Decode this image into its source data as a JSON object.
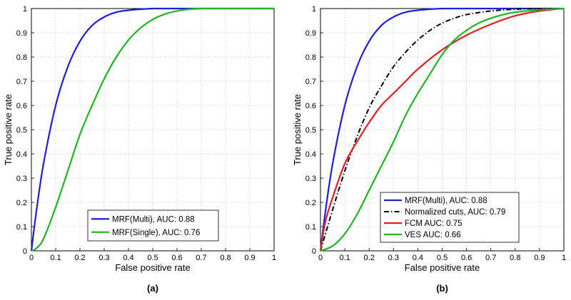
{
  "chart_data": [
    {
      "type": "line",
      "caption": "(a)",
      "xlabel": "False positive rate",
      "ylabel": "True positive rate",
      "xlim": [
        0,
        1
      ],
      "ylim": [
        0,
        1
      ],
      "grid": true,
      "xticks": [
        "0",
        "0.1",
        "0.2",
        "0.3",
        "0.4",
        "0.5",
        "0.6",
        "0.7",
        "0.8",
        "0.9",
        "1"
      ],
      "yticks": [
        "0",
        "0.1",
        "0.2",
        "0.3",
        "0.4",
        "0.5",
        "0.6",
        "0.7",
        "0.8",
        "0.9",
        "1"
      ],
      "legend_position": "bottom-center",
      "series": [
        {
          "name": "MRF(Multi), AUC: 0.88",
          "color": "#1f1fd6",
          "dash": "solid",
          "x": [
            0,
            0.02,
            0.05,
            0.1,
            0.15,
            0.2,
            0.25,
            0.3,
            0.35,
            0.4,
            0.5,
            0.6,
            0.7,
            0.8,
            1
          ],
          "y": [
            0,
            0.16,
            0.36,
            0.6,
            0.76,
            0.865,
            0.93,
            0.965,
            0.985,
            0.993,
            1,
            1,
            1,
            1,
            1
          ]
        },
        {
          "name": "MRF(Single), AUC: 0.76",
          "color": "#22b422",
          "dash": "solid",
          "x": [
            0,
            0.02,
            0.05,
            0.1,
            0.15,
            0.2,
            0.25,
            0.3,
            0.35,
            0.4,
            0.45,
            0.5,
            0.55,
            0.6,
            0.65,
            0.7,
            0.8,
            1
          ],
          "y": [
            0,
            0.01,
            0.05,
            0.18,
            0.33,
            0.48,
            0.6,
            0.71,
            0.8,
            0.87,
            0.92,
            0.955,
            0.977,
            0.99,
            0.997,
            1,
            1,
            1
          ]
        }
      ]
    },
    {
      "type": "line",
      "caption": "(b)",
      "xlabel": "False positive rate",
      "ylabel": "True positive rate",
      "xlim": [
        0,
        1
      ],
      "ylim": [
        0,
        1
      ],
      "grid": true,
      "xticks": [
        "0",
        "0.1",
        "0.2",
        "0.3",
        "0.4",
        "0.5",
        "0.6",
        "0.7",
        "0.8",
        "0.9",
        "1"
      ],
      "yticks": [
        "0",
        "0.1",
        "0.2",
        "0.3",
        "0.4",
        "0.5",
        "0.6",
        "0.7",
        "0.8",
        "0.9",
        "1"
      ],
      "legend_position": "bottom-right",
      "series": [
        {
          "name": "MRF(Multi), AUC: 0.88",
          "color": "#1f1fd6",
          "dash": "solid",
          "x": [
            0,
            0.02,
            0.05,
            0.1,
            0.15,
            0.2,
            0.25,
            0.3,
            0.35,
            0.4,
            0.5,
            0.6,
            0.7,
            0.8,
            1
          ],
          "y": [
            0,
            0.16,
            0.36,
            0.6,
            0.76,
            0.865,
            0.93,
            0.965,
            0.985,
            0.993,
            1,
            1,
            1,
            1,
            1
          ]
        },
        {
          "name": "Normalized cuts, AUC: 0.79",
          "color": "#000000",
          "dash": "dashdot",
          "x": [
            0,
            0.05,
            0.1,
            0.15,
            0.2,
            0.25,
            0.3,
            0.35,
            0.4,
            0.45,
            0.5,
            0.55,
            0.6,
            0.7,
            0.8,
            0.9,
            1
          ],
          "y": [
            0,
            0.17,
            0.33,
            0.47,
            0.59,
            0.68,
            0.76,
            0.82,
            0.87,
            0.91,
            0.94,
            0.96,
            0.975,
            0.99,
            0.997,
            1,
            1
          ]
        },
        {
          "name": "FCM AUC: 0.75",
          "color": "#e02020",
          "dash": "solid",
          "x": [
            0,
            0.02,
            0.05,
            0.1,
            0.15,
            0.2,
            0.25,
            0.3,
            0.35,
            0.4,
            0.5,
            0.6,
            0.7,
            0.8,
            0.9,
            1
          ],
          "y": [
            0,
            0.12,
            0.22,
            0.36,
            0.45,
            0.53,
            0.6,
            0.65,
            0.7,
            0.75,
            0.83,
            0.89,
            0.935,
            0.97,
            0.99,
            1
          ]
        },
        {
          "name": "VES AUC: 0.66",
          "color": "#22b422",
          "dash": "solid",
          "x": [
            0,
            0.05,
            0.1,
            0.15,
            0.2,
            0.25,
            0.3,
            0.35,
            0.4,
            0.45,
            0.5,
            0.55,
            0.6,
            0.65,
            0.7,
            0.75,
            0.8,
            0.9,
            1
          ],
          "y": [
            0,
            0.02,
            0.07,
            0.15,
            0.25,
            0.35,
            0.45,
            0.56,
            0.65,
            0.73,
            0.81,
            0.87,
            0.91,
            0.94,
            0.96,
            0.975,
            0.985,
            0.995,
            1
          ]
        }
      ]
    }
  ]
}
